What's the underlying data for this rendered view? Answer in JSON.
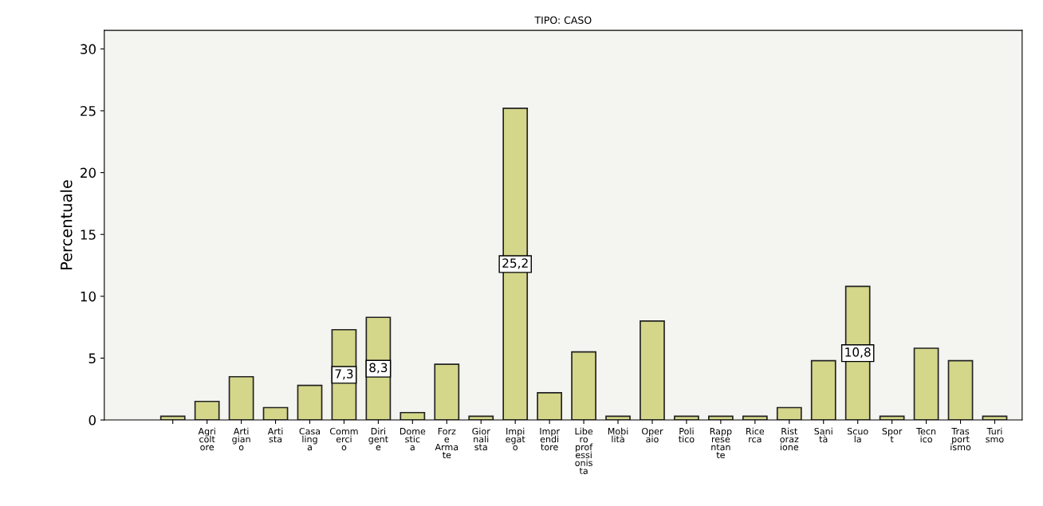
{
  "chart_data": {
    "type": "bar",
    "title": "TIPO: CASO",
    "ylabel": "Percentuale",
    "categories": [
      null,
      "Agricoltore",
      "Artigiano",
      "Artista",
      "Casalinga",
      "Commercio",
      "Dirigente",
      "Domestica",
      "Forze Armate",
      "Giornalista",
      "Impiegato",
      "Imprenditore",
      "Libero professionista",
      "Mobilità",
      "Operaio",
      "Politico",
      "Rappresentante",
      "Ricerca",
      "Ristorazione",
      "Sanità",
      "Scuola",
      "Sport",
      "Tecnico",
      "Trasportismo",
      "Turismo"
    ],
    "values": [
      0.3,
      1.5,
      3.5,
      1.0,
      2.8,
      7.3,
      8.3,
      0.6,
      4.5,
      0.3,
      25.2,
      2.2,
      5.5,
      0.3,
      8.0,
      0.3,
      0.3,
      0.3,
      1.0,
      4.8,
      10.8,
      0.3,
      5.8,
      4.8,
      0.3
    ],
    "value_labels": [
      null,
      null,
      null,
      null,
      null,
      "7,3",
      "8,3",
      null,
      null,
      null,
      "25,2",
      null,
      null,
      null,
      null,
      null,
      null,
      null,
      null,
      null,
      "10,8",
      null,
      null,
      null,
      null
    ],
    "color": "#d4d68a",
    "ylim": [
      0,
      31.5
    ],
    "yticks": [
      0,
      5,
      10,
      15,
      20,
      25,
      30
    ],
    "grid": false
  }
}
